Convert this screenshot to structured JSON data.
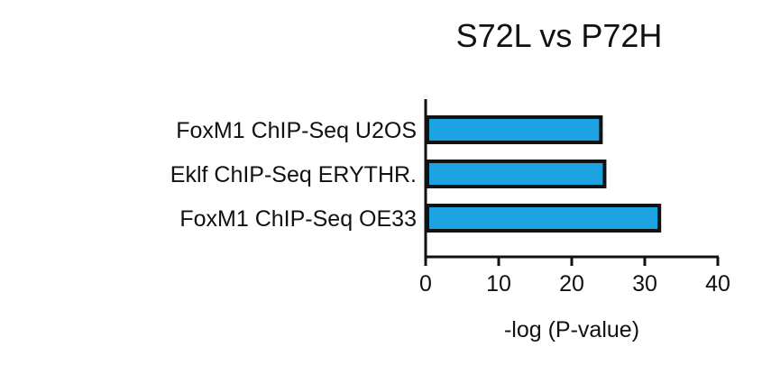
{
  "chart_data": {
    "type": "bar",
    "orientation": "horizontal",
    "title": "S72L vs P72H",
    "xlabel": "-log (P-value)",
    "ylabel": "",
    "categories": [
      "FoxM1 ChIP-Seq U2OS",
      "Eklf ChIP-Seq ERYTHR.",
      "FoxM1 ChIP-Seq OE33"
    ],
    "values": [
      24,
      24.5,
      32
    ],
    "xlim": [
      0,
      40
    ],
    "xticks": [
      0,
      10,
      20,
      30,
      40
    ],
    "grid": false,
    "legend": "none",
    "bar_color": "#1aa3e0",
    "bar_edge_color": "#111111"
  }
}
